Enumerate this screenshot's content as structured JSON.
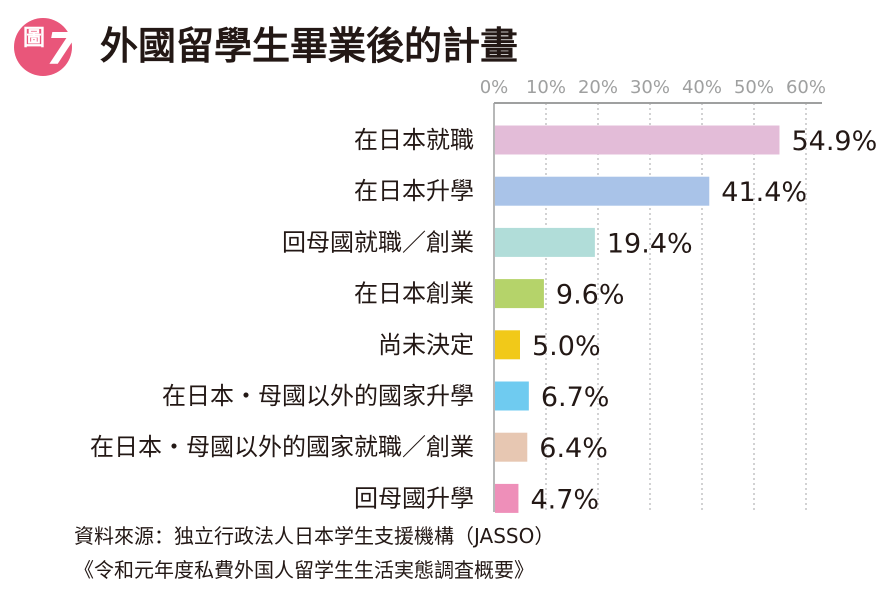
{
  "header": {
    "badge_word": "圖",
    "badge_number": "7",
    "title": "外國留學生畢業後的計畫"
  },
  "colors": {
    "badge": "#e9567a",
    "axis": "#9fa0a0",
    "grid": "#b5b5b6",
    "text": "#231815"
  },
  "chart_data": {
    "type": "bar",
    "orientation": "horizontal",
    "title": "外國留學生畢業後的計畫",
    "xlim": [
      0,
      60
    ],
    "ticks": [
      0,
      10,
      20,
      30,
      40,
      50,
      60
    ],
    "tick_labels": [
      "0%",
      "10%",
      "20%",
      "30%",
      "40%",
      "50%",
      "60%"
    ],
    "axis_position": "top",
    "grid": "vertical-dotted",
    "categories": [
      "在日本就職",
      "在日本升學",
      "回母國就職／創業",
      "在日本創業",
      "尚未決定",
      "在日本・母國以外的國家升學",
      "在日本・母國以外的國家就職／創業",
      "回母國升學"
    ],
    "values": [
      54.9,
      41.4,
      19.4,
      9.6,
      5.0,
      6.7,
      6.4,
      4.7
    ],
    "value_labels": [
      "54.9%",
      "41.4%",
      "19.4%",
      "9.6%",
      "5.0%",
      "6.7%",
      "6.4%",
      "4.7%"
    ],
    "bar_colors": [
      "#e3bcd8",
      "#a9c3e8",
      "#b1ddd9",
      "#b5d36a",
      "#f1c919",
      "#6fcbf0",
      "#e7c7b2",
      "#ee8fb9"
    ]
  },
  "source": {
    "line1": "資料來源：独立行政法人日本学生支援機構（JASSO）",
    "line2": "《令和元年度私費外国人留学生生活実態調査概要》"
  }
}
